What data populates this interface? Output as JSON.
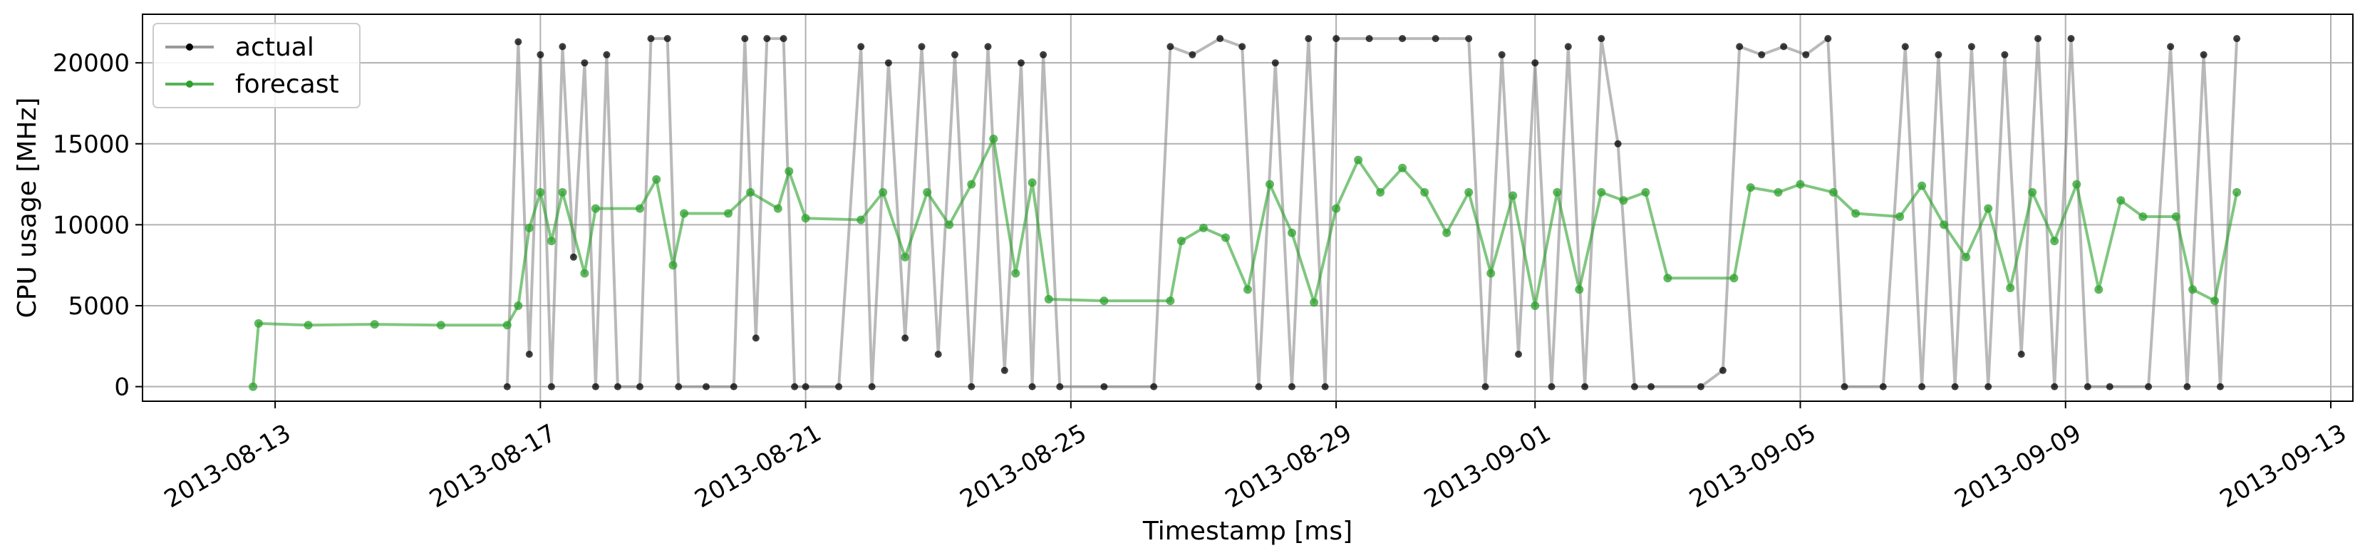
{
  "chart_data": {
    "type": "line",
    "title": "",
    "xlabel": "Timestamp [ms]",
    "ylabel": "CPU usage [MHz]",
    "ylim": [
      -900,
      23000
    ],
    "xlim": [
      "2013-08-11T00:00",
      "2013-09-13T08:00"
    ],
    "grid": true,
    "legend_position": "top-left",
    "x_ticks": [
      "2013-08-13",
      "2013-08-17",
      "2013-08-21",
      "2013-08-25",
      "2013-08-29",
      "2013-09-01",
      "2013-09-05",
      "2013-09-09",
      "2013-09-13"
    ],
    "y_ticks": [
      0,
      5000,
      10000,
      15000,
      20000
    ],
    "colors": {
      "actual": "#000000",
      "actual_line": "#808080",
      "forecast": "#2ca02c"
    },
    "series": [
      {
        "name": "actual",
        "points": [
          [
            "2013-08-16T12:00",
            0
          ],
          [
            "2013-08-16T16:00",
            21300
          ],
          [
            "2013-08-16T20:00",
            2000
          ],
          [
            "2013-08-17T00:00",
            20500
          ],
          [
            "2013-08-17T04:00",
            0
          ],
          [
            "2013-08-17T08:00",
            21000
          ],
          [
            "2013-08-17T12:00",
            8000
          ],
          [
            "2013-08-17T16:00",
            20000
          ],
          [
            "2013-08-17T20:00",
            0
          ],
          [
            "2013-08-18T00:00",
            20500
          ],
          [
            "2013-08-18T04:00",
            0
          ],
          [
            "2013-08-18T12:00",
            0
          ],
          [
            "2013-08-18T16:00",
            21500
          ],
          [
            "2013-08-18T22:00",
            21500
          ],
          [
            "2013-08-19T02:00",
            0
          ],
          [
            "2013-08-19T12:00",
            0
          ],
          [
            "2013-08-19T22:00",
            0
          ],
          [
            "2013-08-20T02:00",
            21500
          ],
          [
            "2013-08-20T06:00",
            3000
          ],
          [
            "2013-08-20T10:00",
            21500
          ],
          [
            "2013-08-20T16:00",
            21500
          ],
          [
            "2013-08-20T20:00",
            0
          ],
          [
            "2013-08-21T00:00",
            0
          ],
          [
            "2013-08-21T12:00",
            0
          ],
          [
            "2013-08-21T20:00",
            21000
          ],
          [
            "2013-08-22T00:00",
            0
          ],
          [
            "2013-08-22T06:00",
            20000
          ],
          [
            "2013-08-22T12:00",
            3000
          ],
          [
            "2013-08-22T18:00",
            21000
          ],
          [
            "2013-08-23T00:00",
            2000
          ],
          [
            "2013-08-23T06:00",
            20500
          ],
          [
            "2013-08-23T12:00",
            0
          ],
          [
            "2013-08-23T18:00",
            21000
          ],
          [
            "2013-08-24T00:00",
            1000
          ],
          [
            "2013-08-24T06:00",
            20000
          ],
          [
            "2013-08-24T10:00",
            0
          ],
          [
            "2013-08-24T14:00",
            20500
          ],
          [
            "2013-08-24T20:00",
            0
          ],
          [
            "2013-08-25T12:00",
            0
          ],
          [
            "2013-08-26T06:00",
            0
          ],
          [
            "2013-08-26T12:00",
            21000
          ],
          [
            "2013-08-26T20:00",
            20500
          ],
          [
            "2013-08-27T06:00",
            21500
          ],
          [
            "2013-08-27T14:00",
            21000
          ],
          [
            "2013-08-27T20:00",
            0
          ],
          [
            "2013-08-28T02:00",
            20000
          ],
          [
            "2013-08-28T08:00",
            0
          ],
          [
            "2013-08-28T14:00",
            21500
          ],
          [
            "2013-08-28T20:00",
            0
          ],
          [
            "2013-08-29T00:00",
            21500
          ],
          [
            "2013-08-29T12:00",
            21500
          ],
          [
            "2013-08-30T00:00",
            21500
          ],
          [
            "2013-08-30T12:00",
            21500
          ],
          [
            "2013-08-31T00:00",
            21500
          ],
          [
            "2013-08-31T06:00",
            0
          ],
          [
            "2013-08-31T12:00",
            20500
          ],
          [
            "2013-08-31T18:00",
            2000
          ],
          [
            "2013-09-01T00:00",
            20000
          ],
          [
            "2013-09-01T06:00",
            0
          ],
          [
            "2013-09-01T12:00",
            21000
          ],
          [
            "2013-09-01T18:00",
            0
          ],
          [
            "2013-09-02T00:00",
            21500
          ],
          [
            "2013-09-02T06:00",
            15000
          ],
          [
            "2013-09-02T12:00",
            0
          ],
          [
            "2013-09-02T18:00",
            0
          ],
          [
            "2013-09-03T12:00",
            0
          ],
          [
            "2013-09-03T20:00",
            1000
          ],
          [
            "2013-09-04T02:00",
            21000
          ],
          [
            "2013-09-04T10:00",
            20500
          ],
          [
            "2013-09-04T18:00",
            21000
          ],
          [
            "2013-09-05T02:00",
            20500
          ],
          [
            "2013-09-05T10:00",
            21500
          ],
          [
            "2013-09-05T16:00",
            0
          ],
          [
            "2013-09-06T06:00",
            0
          ],
          [
            "2013-09-06T14:00",
            21000
          ],
          [
            "2013-09-06T20:00",
            0
          ],
          [
            "2013-09-07T02:00",
            20500
          ],
          [
            "2013-09-07T08:00",
            0
          ],
          [
            "2013-09-07T14:00",
            21000
          ],
          [
            "2013-09-07T20:00",
            0
          ],
          [
            "2013-09-08T02:00",
            20500
          ],
          [
            "2013-09-08T08:00",
            2000
          ],
          [
            "2013-09-08T14:00",
            21500
          ],
          [
            "2013-09-08T20:00",
            0
          ],
          [
            "2013-09-09T02:00",
            21500
          ],
          [
            "2013-09-09T08:00",
            0
          ],
          [
            "2013-09-09T16:00",
            0
          ],
          [
            "2013-09-10T06:00",
            0
          ],
          [
            "2013-09-10T14:00",
            21000
          ],
          [
            "2013-09-10T20:00",
            0
          ],
          [
            "2013-09-11T02:00",
            20500
          ],
          [
            "2013-09-11T08:00",
            0
          ],
          [
            "2013-09-11T14:00",
            21500
          ]
        ]
      },
      {
        "name": "forecast",
        "points": [
          [
            "2013-08-12T16:00",
            0
          ],
          [
            "2013-08-12T18:00",
            3900
          ],
          [
            "2013-08-13T12:00",
            3800
          ],
          [
            "2013-08-14T12:00",
            3850
          ],
          [
            "2013-08-15T12:00",
            3800
          ],
          [
            "2013-08-16T12:00",
            3800
          ],
          [
            "2013-08-16T16:00",
            5000
          ],
          [
            "2013-08-16T20:00",
            9800
          ],
          [
            "2013-08-17T00:00",
            12000
          ],
          [
            "2013-08-17T04:00",
            9000
          ],
          [
            "2013-08-17T08:00",
            12000
          ],
          [
            "2013-08-17T16:00",
            7000
          ],
          [
            "2013-08-17T20:00",
            11000
          ],
          [
            "2013-08-18T12:00",
            11000
          ],
          [
            "2013-08-18T18:00",
            12800
          ],
          [
            "2013-08-19T00:00",
            7500
          ],
          [
            "2013-08-19T04:00",
            10700
          ],
          [
            "2013-08-19T20:00",
            10700
          ],
          [
            "2013-08-20T04:00",
            12000
          ],
          [
            "2013-08-20T14:00",
            11000
          ],
          [
            "2013-08-20T18:00",
            13300
          ],
          [
            "2013-08-21T00:00",
            10400
          ],
          [
            "2013-08-21T20:00",
            10300
          ],
          [
            "2013-08-22T04:00",
            12000
          ],
          [
            "2013-08-22T12:00",
            8000
          ],
          [
            "2013-08-22T20:00",
            12000
          ],
          [
            "2013-08-23T04:00",
            10000
          ],
          [
            "2013-08-23T12:00",
            12500
          ],
          [
            "2013-08-23T20:00",
            15300
          ],
          [
            "2013-08-24T04:00",
            7000
          ],
          [
            "2013-08-24T10:00",
            12600
          ],
          [
            "2013-08-24T16:00",
            5400
          ],
          [
            "2013-08-25T12:00",
            5300
          ],
          [
            "2013-08-26T12:00",
            5300
          ],
          [
            "2013-08-26T16:00",
            9000
          ],
          [
            "2013-08-27T00:00",
            9800
          ],
          [
            "2013-08-27T08:00",
            9200
          ],
          [
            "2013-08-27T16:00",
            6000
          ],
          [
            "2013-08-28T00:00",
            12500
          ],
          [
            "2013-08-28T08:00",
            9500
          ],
          [
            "2013-08-28T16:00",
            5200
          ],
          [
            "2013-08-29T00:00",
            11000
          ],
          [
            "2013-08-29T08:00",
            14000
          ],
          [
            "2013-08-29T16:00",
            12000
          ],
          [
            "2013-08-30T00:00",
            13500
          ],
          [
            "2013-08-30T08:00",
            12000
          ],
          [
            "2013-08-30T16:00",
            9500
          ],
          [
            "2013-08-31T00:00",
            12000
          ],
          [
            "2013-08-31T08:00",
            7000
          ],
          [
            "2013-08-31T16:00",
            11800
          ],
          [
            "2013-09-01T00:00",
            5000
          ],
          [
            "2013-09-01T08:00",
            12000
          ],
          [
            "2013-09-01T16:00",
            6000
          ],
          [
            "2013-09-02T00:00",
            12000
          ],
          [
            "2013-09-02T08:00",
            11500
          ],
          [
            "2013-09-02T16:00",
            12000
          ],
          [
            "2013-09-03T00:00",
            6700
          ],
          [
            "2013-09-04T00:00",
            6700
          ],
          [
            "2013-09-04T06:00",
            12300
          ],
          [
            "2013-09-04T16:00",
            12000
          ],
          [
            "2013-09-05T00:00",
            12500
          ],
          [
            "2013-09-05T12:00",
            12000
          ],
          [
            "2013-09-05T20:00",
            10700
          ],
          [
            "2013-09-06T12:00",
            10500
          ],
          [
            "2013-09-06T20:00",
            12400
          ],
          [
            "2013-09-07T04:00",
            10000
          ],
          [
            "2013-09-07T12:00",
            8000
          ],
          [
            "2013-09-07T20:00",
            11000
          ],
          [
            "2013-09-08T04:00",
            6100
          ],
          [
            "2013-09-08T12:00",
            12000
          ],
          [
            "2013-09-08T20:00",
            9000
          ],
          [
            "2013-09-09T04:00",
            12500
          ],
          [
            "2013-09-09T12:00",
            6000
          ],
          [
            "2013-09-09T20:00",
            11500
          ],
          [
            "2013-09-10T04:00",
            10500
          ],
          [
            "2013-09-10T16:00",
            10500
          ],
          [
            "2013-09-10T22:00",
            6000
          ],
          [
            "2013-09-11T06:00",
            5300
          ],
          [
            "2013-09-11T14:00",
            12000
          ]
        ]
      }
    ]
  }
}
